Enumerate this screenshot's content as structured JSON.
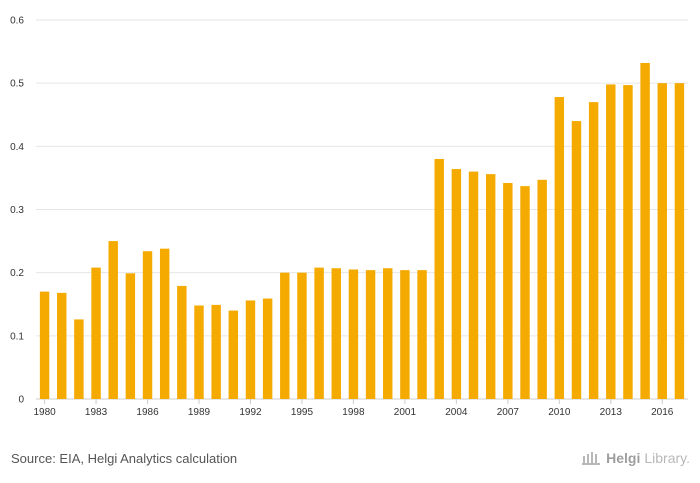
{
  "chart_data": {
    "type": "bar",
    "title": "",
    "xlabel": "",
    "ylabel": "",
    "ylim": [
      0,
      0.6
    ],
    "yticks": [
      "0",
      "0.1",
      "0.2",
      "0.3",
      "0.4",
      "0.5",
      "0.6"
    ],
    "ytick_values": [
      0,
      0.1,
      0.2,
      0.3,
      0.4,
      0.5,
      0.6
    ],
    "grid": true,
    "bar_color": "#f5aa00",
    "categories": [
      "1980",
      "1981",
      "1982",
      "1983",
      "1984",
      "1985",
      "1986",
      "1987",
      "1988",
      "1989",
      "1990",
      "1991",
      "1992",
      "1993",
      "1994",
      "1995",
      "1996",
      "1997",
      "1998",
      "1999",
      "2000",
      "2001",
      "2002",
      "2003",
      "2004",
      "2005",
      "2006",
      "2007",
      "2008",
      "2009",
      "2010",
      "2011",
      "2012",
      "2013",
      "2014",
      "2015",
      "2016",
      "2017"
    ],
    "xtick_labels": [
      "1980",
      "1983",
      "1986",
      "1989",
      "1992",
      "1995",
      "1998",
      "2001",
      "2004",
      "2007",
      "2010",
      "2013",
      "2016"
    ],
    "values": [
      0.17,
      0.168,
      0.126,
      0.208,
      0.25,
      0.199,
      0.234,
      0.238,
      0.179,
      0.148,
      0.149,
      0.14,
      0.156,
      0.159,
      0.2,
      0.2,
      0.208,
      0.207,
      0.205,
      0.204,
      0.207,
      0.204,
      0.204,
      0.38,
      0.364,
      0.36,
      0.356,
      0.342,
      0.337,
      0.347,
      0.478,
      0.44,
      0.47,
      0.498,
      0.497,
      0.532,
      0.5,
      0.5
    ]
  },
  "footer": {
    "source": "Source: EIA, Helgi Analytics calculation",
    "brand_name": "Helgi",
    "brand_suffix": "Library."
  }
}
